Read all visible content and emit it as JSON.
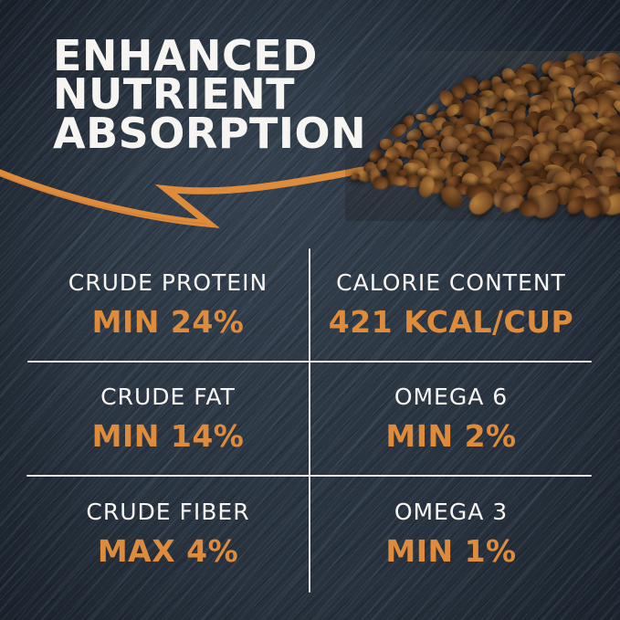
{
  "title": {
    "lines": [
      "ENHANCED",
      "NUTRIENT",
      "ABSORPTION"
    ]
  },
  "stats": {
    "rows": [
      [
        {
          "label": "CRUDE PROTEIN",
          "value": "MIN 24%"
        },
        {
          "label": "CALORIE CONTENT",
          "value": "421 KCAL/CUP"
        }
      ],
      [
        {
          "label": "CRUDE FAT",
          "value": "MIN 14%"
        },
        {
          "label": "OMEGA 6",
          "value": "MIN 2%"
        }
      ],
      [
        {
          "label": "CRUDE FIBER",
          "value": "MAX 4%"
        },
        {
          "label": "OMEGA 3",
          "value": "MIN 1%"
        }
      ]
    ]
  },
  "graphics": {
    "arrow": "orange-swoosh-arrow",
    "photo": "pile-of-dry-kibble"
  },
  "colors": {
    "accent": "#DF8B3C",
    "text": "#F7F5F1",
    "background": "#28323E",
    "divider": "#E8E8E8",
    "kibble_brown": "#8A5A2E"
  }
}
